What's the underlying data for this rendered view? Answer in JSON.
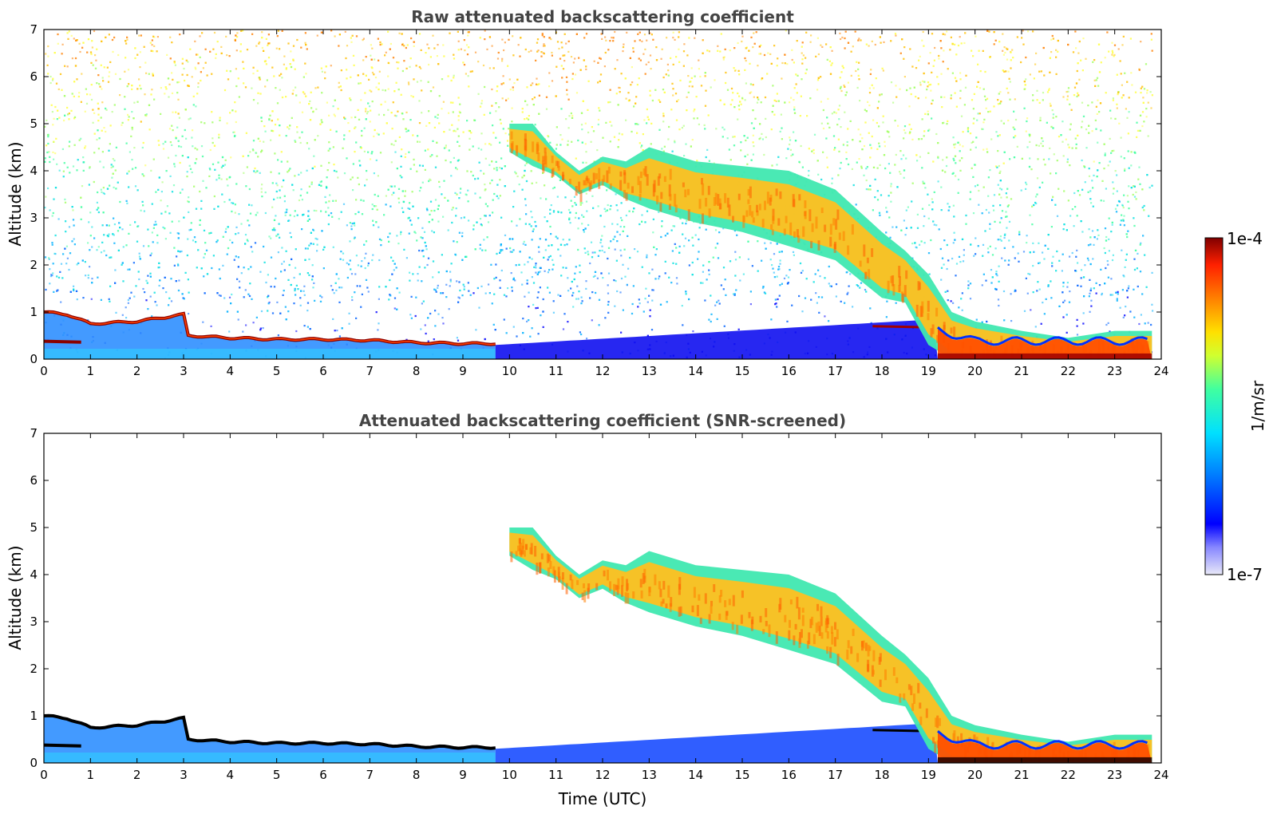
{
  "chart_data": [
    {
      "type": "heatmap",
      "title": "Raw attenuated backscattering coefficient",
      "xlabel": "",
      "ylabel": "Altitude (km)",
      "xlim": [
        0,
        24
      ],
      "ylim": [
        0,
        7
      ],
      "xticks": [
        "0",
        "1",
        "2",
        "3",
        "4",
        "5",
        "6",
        "7",
        "8",
        "9",
        "10",
        "11",
        "12",
        "13",
        "14",
        "15",
        "16",
        "17",
        "18",
        "19",
        "20",
        "21",
        "22",
        "23",
        "24"
      ],
      "yticks": [
        "0",
        "1",
        "2",
        "3",
        "4",
        "5",
        "6",
        "7"
      ],
      "screened": false,
      "features": {
        "boundary_layer_top_km": [
          [
            0,
            1.0
          ],
          [
            0.5,
            0.95
          ],
          [
            1,
            0.75
          ],
          [
            2,
            0.8
          ],
          [
            3,
            0.95
          ],
          [
            3.1,
            0.5
          ],
          [
            4,
            0.45
          ],
          [
            5,
            0.42
          ],
          [
            6,
            0.42
          ],
          [
            7,
            0.4
          ],
          [
            8,
            0.35
          ],
          [
            9,
            0.33
          ],
          [
            9.7,
            0.33
          ]
        ],
        "cloud_layer": [
          {
            "t": 10.0,
            "base_km": 4.4,
            "top_km": 5.0
          },
          {
            "t": 10.5,
            "base_km": 4.1,
            "top_km": 5.0
          },
          {
            "t": 11.0,
            "base_km": 3.9,
            "top_km": 4.4
          },
          {
            "t": 11.5,
            "base_km": 3.5,
            "top_km": 4.0
          },
          {
            "t": 12.0,
            "base_km": 3.7,
            "top_km": 4.3
          },
          {
            "t": 12.5,
            "base_km": 3.4,
            "top_km": 4.2
          },
          {
            "t": 13.0,
            "base_km": 3.2,
            "top_km": 4.5
          },
          {
            "t": 14.0,
            "base_km": 2.9,
            "top_km": 4.2
          },
          {
            "t": 15.0,
            "base_km": 2.7,
            "top_km": 4.1
          },
          {
            "t": 16.0,
            "base_km": 2.4,
            "top_km": 4.0
          },
          {
            "t": 17.0,
            "base_km": 2.1,
            "top_km": 3.6
          },
          {
            "t": 18.0,
            "base_km": 1.3,
            "top_km": 2.7
          },
          {
            "t": 18.5,
            "base_km": 1.2,
            "top_km": 2.3
          },
          {
            "t": 19.0,
            "base_km": 0.3,
            "top_km": 1.8
          },
          {
            "t": 19.5,
            "base_km": 0.0,
            "top_km": 1.0
          },
          {
            "t": 20.0,
            "base_km": 0.0,
            "top_km": 0.8
          },
          {
            "t": 21.0,
            "base_km": 0.0,
            "top_km": 0.6
          },
          {
            "t": 22.0,
            "base_km": 0.0,
            "top_km": 0.45
          },
          {
            "t": 23.0,
            "base_km": 0.0,
            "top_km": 0.6
          },
          {
            "t": 23.8,
            "base_km": 0.0,
            "top_km": 0.6
          }
        ]
      }
    },
    {
      "type": "heatmap",
      "title": "Attenuated backscattering coefficient (SNR-screened)",
      "xlabel": "Time (UTC)",
      "ylabel": "Altitude (km)",
      "xlim": [
        0,
        24
      ],
      "ylim": [
        0,
        7
      ],
      "xticks": [
        "0",
        "1",
        "2",
        "3",
        "4",
        "5",
        "6",
        "7",
        "8",
        "9",
        "10",
        "11",
        "12",
        "13",
        "14",
        "15",
        "16",
        "17",
        "18",
        "19",
        "20",
        "21",
        "22",
        "23",
        "24"
      ],
      "yticks": [
        "0",
        "1",
        "2",
        "3",
        "4",
        "5",
        "6",
        "7"
      ],
      "screened": true
    }
  ],
  "colorbar": {
    "label": "1/m/sr",
    "max_label": "1e-4",
    "min_label": "1e-7",
    "min_value": 1e-07,
    "max_value": 0.0001,
    "scale": "log",
    "colormap": [
      "#e8e8f8",
      "#0000ff",
      "#00c0ff",
      "#00ffb0",
      "#ffff00",
      "#ff8000",
      "#ff2000",
      "#800000"
    ]
  }
}
